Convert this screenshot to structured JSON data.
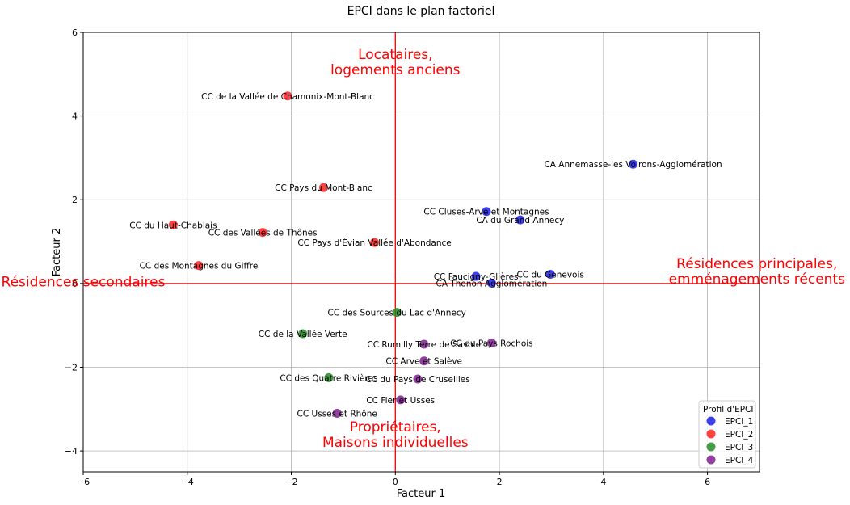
{
  "chart_data": {
    "type": "scatter",
    "title": "EPCI dans le plan factoriel",
    "xlabel": "Facteur 1",
    "ylabel": "Facteur 2",
    "xlim": [
      -6,
      7
    ],
    "ylim": [
      -4.5,
      6
    ],
    "xticks": [
      -6,
      -4,
      -2,
      0,
      2,
      4,
      6
    ],
    "yticks": [
      -4,
      -2,
      0,
      2,
      4,
      6
    ],
    "grid": true,
    "reference_lines": {
      "x": 0,
      "y": 0,
      "color": "#ff0000"
    },
    "legend": {
      "title": "Profil d'EPCI",
      "placement": "lower right"
    },
    "series": [
      {
        "name": "EPCI_1",
        "color": "#1f1fe6",
        "points": [
          {
            "x": 4.57,
            "y": 2.85,
            "label": "CA Annemasse-les Voirons-Agglomération"
          },
          {
            "x": 1.75,
            "y": 1.72,
            "label": "CC Cluses-Arve et Montagnes"
          },
          {
            "x": 2.4,
            "y": 1.52,
            "label": "CA du Grand Annecy"
          },
          {
            "x": 2.98,
            "y": 0.22,
            "label": "CC du Genevois"
          },
          {
            "x": 1.55,
            "y": 0.17,
            "label": "CC Faucigny-Glières"
          },
          {
            "x": 1.85,
            "y": 0.01,
            "label": "CA Thonon Agglomération"
          }
        ]
      },
      {
        "name": "EPCI_2",
        "color": "#ff2020",
        "points": [
          {
            "x": -2.07,
            "y": 4.48,
            "label": "CC de la Vallée de Chamonix-Mont-Blanc"
          },
          {
            "x": -1.38,
            "y": 2.29,
            "label": "CC Pays du Mont-Blanc"
          },
          {
            "x": -4.27,
            "y": 1.4,
            "label": "CC du Haut-Chablais"
          },
          {
            "x": -2.55,
            "y": 1.22,
            "label": "CC des Vallées de Thônes"
          },
          {
            "x": -0.4,
            "y": 0.98,
            "label": "CC Pays d'Évian Vallée d'Abondance"
          },
          {
            "x": -3.78,
            "y": 0.43,
            "label": "CC des Montagnes du Giffre"
          }
        ]
      },
      {
        "name": "EPCI_3",
        "color": "#228b22",
        "points": [
          {
            "x": 0.03,
            "y": -0.69,
            "label": "CC des Sources du Lac d'Annecy"
          },
          {
            "x": -1.78,
            "y": -1.2,
            "label": "CC de la Vallée Verte"
          },
          {
            "x": -1.28,
            "y": -2.25,
            "label": "CC des Quatre Rivières"
          }
        ]
      },
      {
        "name": "EPCI_4",
        "color": "#7f1f8f",
        "points": [
          {
            "x": 0.55,
            "y": -1.45,
            "label": "CC Rumilly Terre de Savoie"
          },
          {
            "x": 1.85,
            "y": -1.42,
            "label": "CC du Pays Rochois"
          },
          {
            "x": 0.55,
            "y": -1.85,
            "label": "CC Arve et Salève"
          },
          {
            "x": 0.43,
            "y": -2.28,
            "label": "CC du Pays de Cruseilles"
          },
          {
            "x": 0.1,
            "y": -2.78,
            "label": "CC Fier et Usses"
          },
          {
            "x": -1.12,
            "y": -3.1,
            "label": "CC Usses et Rhône"
          }
        ]
      }
    ],
    "annotations": [
      {
        "text": [
          "Locataires,",
          "logements anciens"
        ],
        "x": 0,
        "y": 5.3,
        "color": "#ff0000",
        "anchor": "middle"
      },
      {
        "text": [
          "Propriétaires,",
          "Maisons individuelles"
        ],
        "x": 0,
        "y": -3.6,
        "color": "#ff0000",
        "anchor": "middle"
      },
      {
        "text": [
          "Résidences secondaires"
        ],
        "x": -6.0,
        "y": 0.05,
        "color": "#ff0000",
        "anchor": "middle"
      },
      {
        "text": [
          "Résidences principales,",
          "emménagements récents"
        ],
        "x": 6.95,
        "y": 0.3,
        "color": "#ff0000",
        "anchor": "middle"
      }
    ]
  }
}
